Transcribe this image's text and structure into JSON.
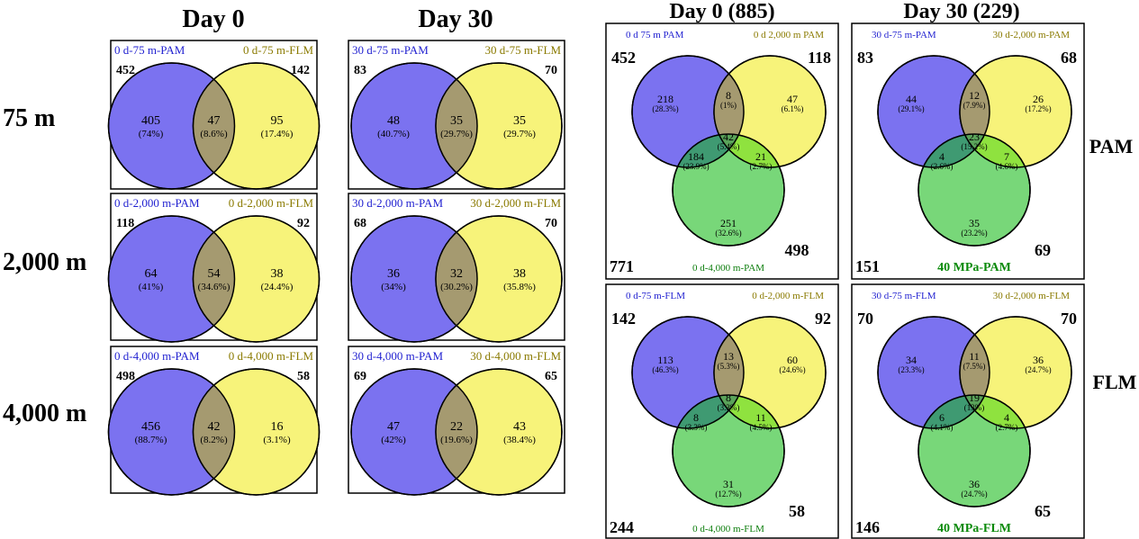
{
  "colors": {
    "pam": "#7b72f0",
    "flm": "#f7f37a",
    "depth3": "#69d36a",
    "label_pam": "#1f1fd0",
    "label_flm": "#8a7a00",
    "label_depth3": "#0b7d0b",
    "label_40mpa": "#0a8a0a"
  },
  "left": {
    "headers": [
      "Day 0",
      "Day 30"
    ],
    "row_labels": [
      "75 m",
      "2,000 m",
      "4,000 m"
    ],
    "panels": [
      {
        "label_a": "0 d-75 m-PAM",
        "label_b": "0 d-75 m-FLM",
        "total_a": "452",
        "total_b": "142",
        "only_a": "405",
        "only_a_pct": "(74%)",
        "both": "47",
        "both_pct": "(8.6%)",
        "only_b": "95",
        "only_b_pct": "(17.4%)"
      },
      {
        "label_a": "30 d-75 m-PAM",
        "label_b": "30 d-75 m-FLM",
        "total_a": "83",
        "total_b": "70",
        "only_a": "48",
        "only_a_pct": "(40.7%)",
        "both": "35",
        "both_pct": "(29.7%)",
        "only_b": "35",
        "only_b_pct": "(29.7%)"
      },
      {
        "label_a": "0 d-2,000 m-PAM",
        "label_b": "0 d-2,000 m-FLM",
        "total_a": "118",
        "total_b": "92",
        "only_a": "64",
        "only_a_pct": "(41%)",
        "both": "54",
        "both_pct": "(34.6%)",
        "only_b": "38",
        "only_b_pct": "(24.4%)"
      },
      {
        "label_a": "30 d-2,000 m-PAM",
        "label_b": "30 d-2,000 m-FLM",
        "total_a": "68",
        "total_b": "70",
        "only_a": "36",
        "only_a_pct": "(34%)",
        "both": "32",
        "both_pct": "(30.2%)",
        "only_b": "38",
        "only_b_pct": "(35.8%)"
      },
      {
        "label_a": "0 d-4,000 m-PAM",
        "label_b": "0 d-4,000 m-FLM",
        "total_a": "498",
        "total_b": "58",
        "only_a": "456",
        "only_a_pct": "(88.7%)",
        "both": "42",
        "both_pct": "(8.2%)",
        "only_b": "16",
        "only_b_pct": "(3.1%)"
      },
      {
        "label_a": "30 d-4,000 m-PAM",
        "label_b": "30 d-4,000 m-FLM",
        "total_a": "69",
        "total_b": "65",
        "only_a": "47",
        "only_a_pct": "(42%)",
        "both": "22",
        "both_pct": "(19.6%)",
        "only_b": "43",
        "only_b_pct": "(38.4%)"
      }
    ]
  },
  "right": {
    "headers": [
      "Day 0 (885)",
      "Day 30 (229)"
    ],
    "row_labels": [
      "PAM",
      "FLM"
    ],
    "panels": [
      {
        "label_a": "0 d 75 m PAM",
        "label_b": "0 d 2,000 m PAM",
        "label_c": "0 d-4,000 m-PAM",
        "total_a": "452",
        "total_b": "118",
        "total_c": "498",
        "total_all": "771",
        "a": "218",
        "a_pct": "(28.3%)",
        "ab": "8",
        "ab_pct": "(1%)",
        "b": "47",
        "b_pct": "(6.1%)",
        "abc": "42",
        "abc_pct": "(5.4%)",
        "ac": "184",
        "ac_pct": "(23.9%)",
        "bc": "21",
        "bc_pct": "(2.7%)",
        "c": "251",
        "c_pct": "(32.6%)"
      },
      {
        "label_a": "30 d-75 m-PAM",
        "label_b": "30 d-2,000 m-PAM",
        "label_c": "40 MPa-PAM",
        "total_a": "83",
        "total_b": "68",
        "total_c": "69",
        "total_all": "151",
        "a": "44",
        "a_pct": "(29.1%)",
        "ab": "12",
        "ab_pct": "(7.9%)",
        "b": "26",
        "b_pct": "(17.2%)",
        "abc": "23",
        "abc_pct": "(15.2%)",
        "ac": "4",
        "ac_pct": "(2.6%)",
        "bc": "7",
        "bc_pct": "(4.6%)",
        "c": "35",
        "c_pct": "(23.2%)"
      },
      {
        "label_a": "0 d-75 m-FLM",
        "label_b": "0 d-2,000 m-FLM",
        "label_c": "0 d-4,000 m-FLM",
        "total_a": "142",
        "total_b": "92",
        "total_c": "58",
        "total_all": "244",
        "a": "113",
        "a_pct": "(46.3%)",
        "ab": "13",
        "ab_pct": "(5.3%)",
        "b": "60",
        "b_pct": "(24.6%)",
        "abc": "8",
        "abc_pct": "(3.3%)",
        "ac": "8",
        "ac_pct": "(3.3%)",
        "bc": "11",
        "bc_pct": "(4.5%)",
        "c": "31",
        "c_pct": "(12.7%)"
      },
      {
        "label_a": "30 d-75 m-FLM",
        "label_b": "30 d-2,000 m-FLM",
        "label_c": "40 MPa-FLM",
        "total_a": "70",
        "total_b": "70",
        "total_c": "65",
        "total_all": "146",
        "a": "34",
        "a_pct": "(23.3%)",
        "ab": "11",
        "ab_pct": "(7.5%)",
        "b": "36",
        "b_pct": "(24.7%)",
        "abc": "19",
        "abc_pct": "(13%)",
        "ac": "6",
        "ac_pct": "(4.1%)",
        "bc": "4",
        "bc_pct": "(2.7%)",
        "c": "36",
        "c_pct": "(24.7%)"
      }
    ]
  }
}
